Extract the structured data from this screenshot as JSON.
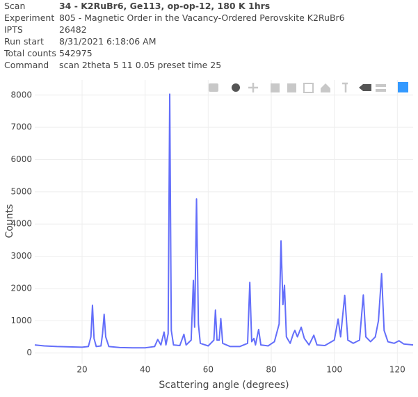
{
  "header": {
    "rows": [
      [
        "Scan",
        "34 - K2RuBr6, Ge113, op-op-12, 180 K 1hrs"
      ],
      [
        "Experiment",
        "805 - Magnetic Order in the Vacancy-Ordered Perovskite K2RuBr6"
      ],
      [
        "IPTS",
        26482
      ],
      [
        "Run start",
        "8/31/2021 6:18:06 AM"
      ],
      [
        "Total counts",
        542975
      ],
      [
        "Command",
        "scan 2theta 5 11 0.05 preset time 25"
      ]
    ]
  },
  "chart_data": {
    "type": "line",
    "x_label": "Scattering angle (degrees)",
    "y_label": "Counts",
    "color": "#636efa",
    "grid": true,
    "x": [
      5,
      8,
      12,
      16,
      20,
      22,
      22.8,
      23.3,
      23.8,
      24.5,
      26,
      26.5,
      27,
      27.5,
      28.5,
      32,
      36,
      40,
      43,
      44,
      45,
      46,
      46.6,
      47.3,
      47.8,
      48.3,
      49,
      51,
      52.3,
      53,
      54.6,
      55.3,
      55.7,
      56.3,
      56.9,
      57.5,
      60,
      61.8,
      62.3,
      62.8,
      63.5,
      64,
      64.6,
      67,
      70,
      72.5,
      73.2,
      73.8,
      74.5,
      75,
      76,
      76.7,
      79,
      81,
      82.5,
      83.1,
      83.7,
      84.2,
      84.8,
      86,
      87,
      87.5,
      88.3,
      89.5,
      90.5,
      92,
      93.5,
      94.5,
      97,
      100,
      101.2,
      102,
      103.3,
      104.3,
      106,
      108,
      109.2,
      110,
      111.5,
      113,
      114,
      115,
      115.8,
      117,
      119,
      120.5,
      122,
      125
    ],
    "values": [
      250,
      220,
      200,
      190,
      180,
      200,
      500,
      1480,
      450,
      200,
      220,
      600,
      1200,
      500,
      200,
      170,
      160,
      160,
      200,
      420,
      250,
      650,
      250,
      600,
      8030,
      700,
      250,
      230,
      580,
      250,
      400,
      2250,
      800,
      4780,
      900,
      300,
      220,
      400,
      1330,
      400,
      400,
      1070,
      300,
      200,
      200,
      300,
      2190,
      350,
      450,
      250,
      730,
      250,
      220,
      350,
      900,
      3480,
      1500,
      2100,
      500,
      300,
      600,
      700,
      500,
      800,
      450,
      250,
      550,
      250,
      230,
      400,
      1050,
      500,
      1790,
      400,
      300,
      400,
      1800,
      500,
      350,
      500,
      1000,
      2460,
      700,
      350,
      300,
      380,
      280,
      250
    ],
    "xlim": [
      5,
      125
    ],
    "ylim": [
      -330,
      8470
    ],
    "xticks": [
      20,
      40,
      60,
      80,
      100,
      120
    ],
    "yticks": [
      0,
      1000,
      2000,
      3000,
      4000,
      5000,
      6000,
      7000,
      8000
    ]
  }
}
